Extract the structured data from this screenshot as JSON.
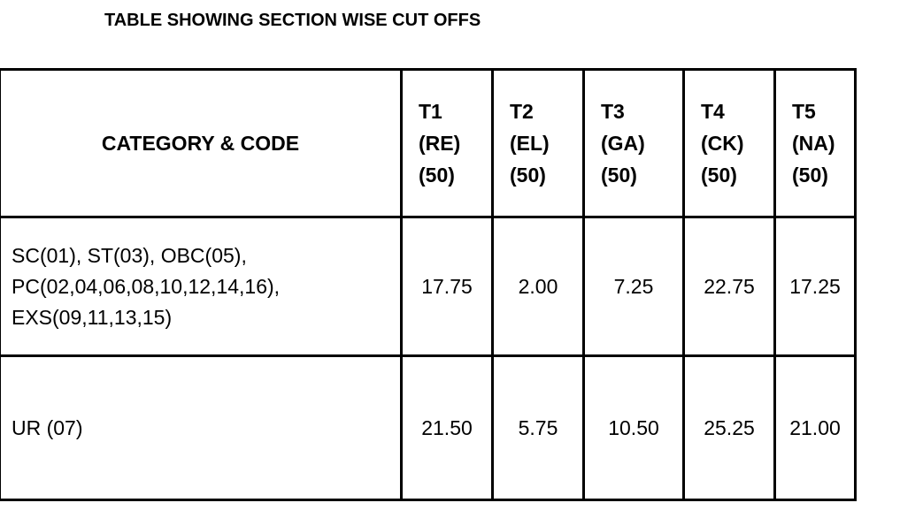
{
  "title": "TABLE SHOWING SECTION WISE CUT OFFS",
  "table": {
    "category_header": "CATEGORY & CODE",
    "test_headers": [
      "T1\n(RE)\n(50)",
      "T2\n(EL)\n(50)",
      "T3\n(GA)\n(50)",
      "T4\n(CK)\n(50)",
      "T5\n(NA)\n(50)"
    ],
    "rows": [
      {
        "category": "SC(01), ST(03), OBC(05),\nPC(02,04,06,08,10,12,14,16),\nEXS(09,11,13,15)",
        "scores": [
          "17.75",
          "2.00",
          "7.25",
          "22.75",
          "17.25"
        ]
      },
      {
        "category": "UR (07)",
        "scores": [
          "21.50",
          "5.75",
          "10.50",
          "25.25",
          "21.00"
        ]
      }
    ]
  }
}
